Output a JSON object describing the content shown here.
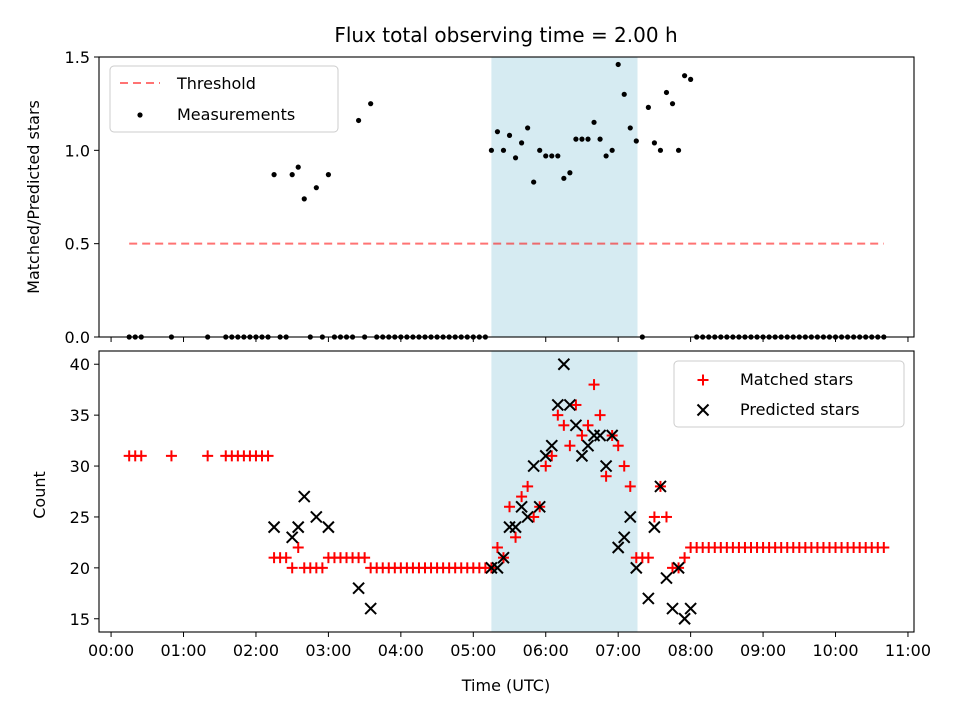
{
  "chart_data": [
    {
      "type": "scatter",
      "title": "Flux total observing time = 2.00 h",
      "xlabel": "",
      "ylabel": "Matched/Predicted stars",
      "ylim": [
        0,
        1.5
      ],
      "yticks": [
        "0.0",
        "0.5",
        "1.0",
        "1.5"
      ],
      "xlim": [
        "23:50",
        "11:05"
      ],
      "highlight_span": [
        "05:15",
        "07:16"
      ],
      "highlight_color": "#add8e6",
      "legend_position": "upper left",
      "threshold": {
        "name": "Threshold",
        "y": 0.5,
        "x_range": [
          "00:15",
          "10:40"
        ],
        "color": "#ff0000",
        "style": "dashed"
      },
      "measurements": {
        "name": "Measurements",
        "color": "#000000",
        "points": [
          [
            "00:15",
            0
          ],
          [
            "00:20",
            0
          ],
          [
            "00:25",
            0
          ],
          [
            "00:50",
            0
          ],
          [
            "01:20",
            0
          ],
          [
            "01:35",
            0
          ],
          [
            "01:40",
            0
          ],
          [
            "01:45",
            0
          ],
          [
            "01:50",
            0
          ],
          [
            "01:55",
            0
          ],
          [
            "02:00",
            0
          ],
          [
            "02:05",
            0
          ],
          [
            "02:10",
            0
          ],
          [
            "02:15",
            0.87
          ],
          [
            "02:20",
            0
          ],
          [
            "02:25",
            0
          ],
          [
            "02:30",
            0.87
          ],
          [
            "02:35",
            0.91
          ],
          [
            "02:40",
            0.74
          ],
          [
            "02:45",
            0
          ],
          [
            "02:50",
            0.8
          ],
          [
            "02:55",
            0
          ],
          [
            "03:00",
            0.87
          ],
          [
            "03:05",
            0
          ],
          [
            "03:10",
            0
          ],
          [
            "03:15",
            0
          ],
          [
            "03:20",
            0
          ],
          [
            "03:25",
            1.16
          ],
          [
            "03:30",
            0
          ],
          [
            "03:35",
            1.25
          ],
          [
            "03:40",
            0
          ],
          [
            "03:45",
            0
          ],
          [
            "03:50",
            0
          ],
          [
            "03:55",
            0
          ],
          [
            "04:00",
            0
          ],
          [
            "04:05",
            0
          ],
          [
            "04:10",
            0
          ],
          [
            "04:15",
            0
          ],
          [
            "04:20",
            0
          ],
          [
            "04:25",
            0
          ],
          [
            "04:30",
            0
          ],
          [
            "04:35",
            0
          ],
          [
            "04:40",
            0
          ],
          [
            "04:45",
            0
          ],
          [
            "04:50",
            0
          ],
          [
            "04:55",
            0
          ],
          [
            "05:00",
            0
          ],
          [
            "05:05",
            0
          ],
          [
            "05:10",
            0
          ],
          [
            "05:15",
            1.0
          ],
          [
            "05:20",
            1.1
          ],
          [
            "05:25",
            1.0
          ],
          [
            "05:30",
            1.08
          ],
          [
            "05:35",
            0.96
          ],
          [
            "05:40",
            1.04
          ],
          [
            "05:45",
            1.12
          ],
          [
            "05:50",
            0.83
          ],
          [
            "05:55",
            1.0
          ],
          [
            "06:00",
            0.97
          ],
          [
            "06:05",
            0.97
          ],
          [
            "06:10",
            0.97
          ],
          [
            "06:15",
            0.85
          ],
          [
            "06:20",
            0.88
          ],
          [
            "06:25",
            1.06
          ],
          [
            "06:30",
            1.06
          ],
          [
            "06:35",
            1.06
          ],
          [
            "06:40",
            1.15
          ],
          [
            "06:45",
            1.06
          ],
          [
            "06:50",
            0.97
          ],
          [
            "06:55",
            1.0
          ],
          [
            "07:00",
            1.46
          ],
          [
            "07:05",
            1.3
          ],
          [
            "07:10",
            1.12
          ],
          [
            "07:15",
            1.05
          ],
          [
            "07:20",
            0
          ],
          [
            "07:25",
            1.23
          ],
          [
            "07:30",
            1.04
          ],
          [
            "07:35",
            1.0
          ],
          [
            "07:40",
            1.31
          ],
          [
            "07:45",
            1.25
          ],
          [
            "07:50",
            1.0
          ],
          [
            "07:55",
            1.4
          ],
          [
            "08:00",
            1.38
          ],
          [
            "08:05",
            0
          ],
          [
            "08:10",
            0
          ],
          [
            "08:15",
            0
          ],
          [
            "08:20",
            0
          ],
          [
            "08:25",
            0
          ],
          [
            "08:30",
            0
          ],
          [
            "08:35",
            0
          ],
          [
            "08:40",
            0
          ],
          [
            "08:45",
            0
          ],
          [
            "08:50",
            0
          ],
          [
            "08:55",
            0
          ],
          [
            "09:00",
            0
          ],
          [
            "09:05",
            0
          ],
          [
            "09:10",
            0
          ],
          [
            "09:15",
            0
          ],
          [
            "09:20",
            0
          ],
          [
            "09:25",
            0
          ],
          [
            "09:30",
            0
          ],
          [
            "09:35",
            0
          ],
          [
            "09:40",
            0
          ],
          [
            "09:45",
            0
          ],
          [
            "09:50",
            0
          ],
          [
            "09:55",
            0
          ],
          [
            "10:00",
            0
          ],
          [
            "10:05",
            0
          ],
          [
            "10:10",
            0
          ],
          [
            "10:15",
            0
          ],
          [
            "10:20",
            0
          ],
          [
            "10:25",
            0
          ],
          [
            "10:30",
            0
          ],
          [
            "10:35",
            0
          ],
          [
            "10:40",
            0
          ]
        ]
      }
    },
    {
      "type": "scatter",
      "xlabel": "Time (UTC)",
      "ylabel": "Count",
      "ylim": [
        13.7,
        41.3
      ],
      "yticks": [
        "15",
        "20",
        "25",
        "30",
        "35",
        "40"
      ],
      "xticks": [
        "00:00",
        "01:00",
        "02:00",
        "03:00",
        "04:00",
        "05:00",
        "06:00",
        "07:00",
        "08:00",
        "09:00",
        "10:00",
        "11:00"
      ],
      "xlim": [
        "23:50",
        "11:05"
      ],
      "highlight_span": [
        "05:15",
        "07:16"
      ],
      "highlight_color": "#add8e6",
      "legend_position": "upper right",
      "series": [
        {
          "name": "Matched stars",
          "marker": "+",
          "color": "#ff0000",
          "points": [
            [
              "00:15",
              31
            ],
            [
              "00:20",
              31
            ],
            [
              "00:25",
              31
            ],
            [
              "00:50",
              31
            ],
            [
              "01:20",
              31
            ],
            [
              "01:35",
              31
            ],
            [
              "01:40",
              31
            ],
            [
              "01:45",
              31
            ],
            [
              "01:50",
              31
            ],
            [
              "01:55",
              31
            ],
            [
              "02:00",
              31
            ],
            [
              "02:05",
              31
            ],
            [
              "02:10",
              31
            ],
            [
              "02:15",
              21
            ],
            [
              "02:20",
              21
            ],
            [
              "02:25",
              21
            ],
            [
              "02:30",
              20
            ],
            [
              "02:35",
              22
            ],
            [
              "02:40",
              20
            ],
            [
              "02:45",
              20
            ],
            [
              "02:50",
              20
            ],
            [
              "02:55",
              20
            ],
            [
              "03:00",
              21
            ],
            [
              "03:05",
              21
            ],
            [
              "03:10",
              21
            ],
            [
              "03:15",
              21
            ],
            [
              "03:20",
              21
            ],
            [
              "03:25",
              21
            ],
            [
              "03:30",
              21
            ],
            [
              "03:35",
              20
            ],
            [
              "03:40",
              20
            ],
            [
              "03:45",
              20
            ],
            [
              "03:50",
              20
            ],
            [
              "03:55",
              20
            ],
            [
              "04:00",
              20
            ],
            [
              "04:05",
              20
            ],
            [
              "04:10",
              20
            ],
            [
              "04:15",
              20
            ],
            [
              "04:20",
              20
            ],
            [
              "04:25",
              20
            ],
            [
              "04:30",
              20
            ],
            [
              "04:35",
              20
            ],
            [
              "04:40",
              20
            ],
            [
              "04:45",
              20
            ],
            [
              "04:50",
              20
            ],
            [
              "04:55",
              20
            ],
            [
              "05:00",
              20
            ],
            [
              "05:05",
              20
            ],
            [
              "05:10",
              20
            ],
            [
              "05:15",
              20
            ],
            [
              "05:20",
              22
            ],
            [
              "05:25",
              21
            ],
            [
              "05:30",
              26
            ],
            [
              "05:35",
              23
            ],
            [
              "05:40",
              27
            ],
            [
              "05:45",
              28
            ],
            [
              "05:50",
              25
            ],
            [
              "05:55",
              26
            ],
            [
              "06:00",
              30
            ],
            [
              "06:05",
              31
            ],
            [
              "06:10",
              35
            ],
            [
              "06:15",
              34
            ],
            [
              "06:20",
              32
            ],
            [
              "06:25",
              36
            ],
            [
              "06:30",
              33
            ],
            [
              "06:35",
              34
            ],
            [
              "06:40",
              38
            ],
            [
              "06:45",
              35
            ],
            [
              "06:50",
              29
            ],
            [
              "06:55",
              33
            ],
            [
              "07:00",
              32
            ],
            [
              "07:05",
              30
            ],
            [
              "07:10",
              28
            ],
            [
              "07:15",
              21
            ],
            [
              "07:20",
              21
            ],
            [
              "07:25",
              21
            ],
            [
              "07:30",
              25
            ],
            [
              "07:35",
              28
            ],
            [
              "07:40",
              25
            ],
            [
              "07:45",
              20
            ],
            [
              "07:50",
              20
            ],
            [
              "07:55",
              21
            ],
            [
              "08:00",
              22
            ],
            [
              "08:05",
              22
            ],
            [
              "08:10",
              22
            ],
            [
              "08:15",
              22
            ],
            [
              "08:20",
              22
            ],
            [
              "08:25",
              22
            ],
            [
              "08:30",
              22
            ],
            [
              "08:35",
              22
            ],
            [
              "08:40",
              22
            ],
            [
              "08:45",
              22
            ],
            [
              "08:50",
              22
            ],
            [
              "08:55",
              22
            ],
            [
              "09:00",
              22
            ],
            [
              "09:05",
              22
            ],
            [
              "09:10",
              22
            ],
            [
              "09:15",
              22
            ],
            [
              "09:20",
              22
            ],
            [
              "09:25",
              22
            ],
            [
              "09:30",
              22
            ],
            [
              "09:35",
              22
            ],
            [
              "09:40",
              22
            ],
            [
              "09:45",
              22
            ],
            [
              "09:50",
              22
            ],
            [
              "09:55",
              22
            ],
            [
              "10:00",
              22
            ],
            [
              "10:05",
              22
            ],
            [
              "10:10",
              22
            ],
            [
              "10:15",
              22
            ],
            [
              "10:20",
              22
            ],
            [
              "10:25",
              22
            ],
            [
              "10:30",
              22
            ],
            [
              "10:35",
              22
            ],
            [
              "10:40",
              22
            ]
          ]
        },
        {
          "name": "Predicted stars",
          "marker": "x",
          "color": "#000000",
          "points": [
            [
              "02:15",
              24
            ],
            [
              "02:30",
              23
            ],
            [
              "02:35",
              24
            ],
            [
              "02:40",
              27
            ],
            [
              "02:50",
              25
            ],
            [
              "03:00",
              24
            ],
            [
              "03:25",
              18
            ],
            [
              "03:35",
              16
            ],
            [
              "05:15",
              20
            ],
            [
              "05:20",
              20
            ],
            [
              "05:25",
              21
            ],
            [
              "05:30",
              24
            ],
            [
              "05:35",
              24
            ],
            [
              "05:40",
              26
            ],
            [
              "05:45",
              25
            ],
            [
              "05:50",
              30
            ],
            [
              "05:55",
              26
            ],
            [
              "06:00",
              31
            ],
            [
              "06:05",
              32
            ],
            [
              "06:10",
              36
            ],
            [
              "06:15",
              40
            ],
            [
              "06:20",
              36
            ],
            [
              "06:25",
              34
            ],
            [
              "06:30",
              31
            ],
            [
              "06:35",
              32
            ],
            [
              "06:40",
              33
            ],
            [
              "06:45",
              33
            ],
            [
              "06:50",
              30
            ],
            [
              "06:55",
              33
            ],
            [
              "07:00",
              22
            ],
            [
              "07:05",
              23
            ],
            [
              "07:10",
              25
            ],
            [
              "07:15",
              20
            ],
            [
              "07:25",
              17
            ],
            [
              "07:30",
              24
            ],
            [
              "07:35",
              28
            ],
            [
              "07:40",
              19
            ],
            [
              "07:45",
              16
            ],
            [
              "07:50",
              20
            ],
            [
              "07:55",
              15
            ],
            [
              "08:00",
              16
            ]
          ]
        }
      ]
    }
  ]
}
